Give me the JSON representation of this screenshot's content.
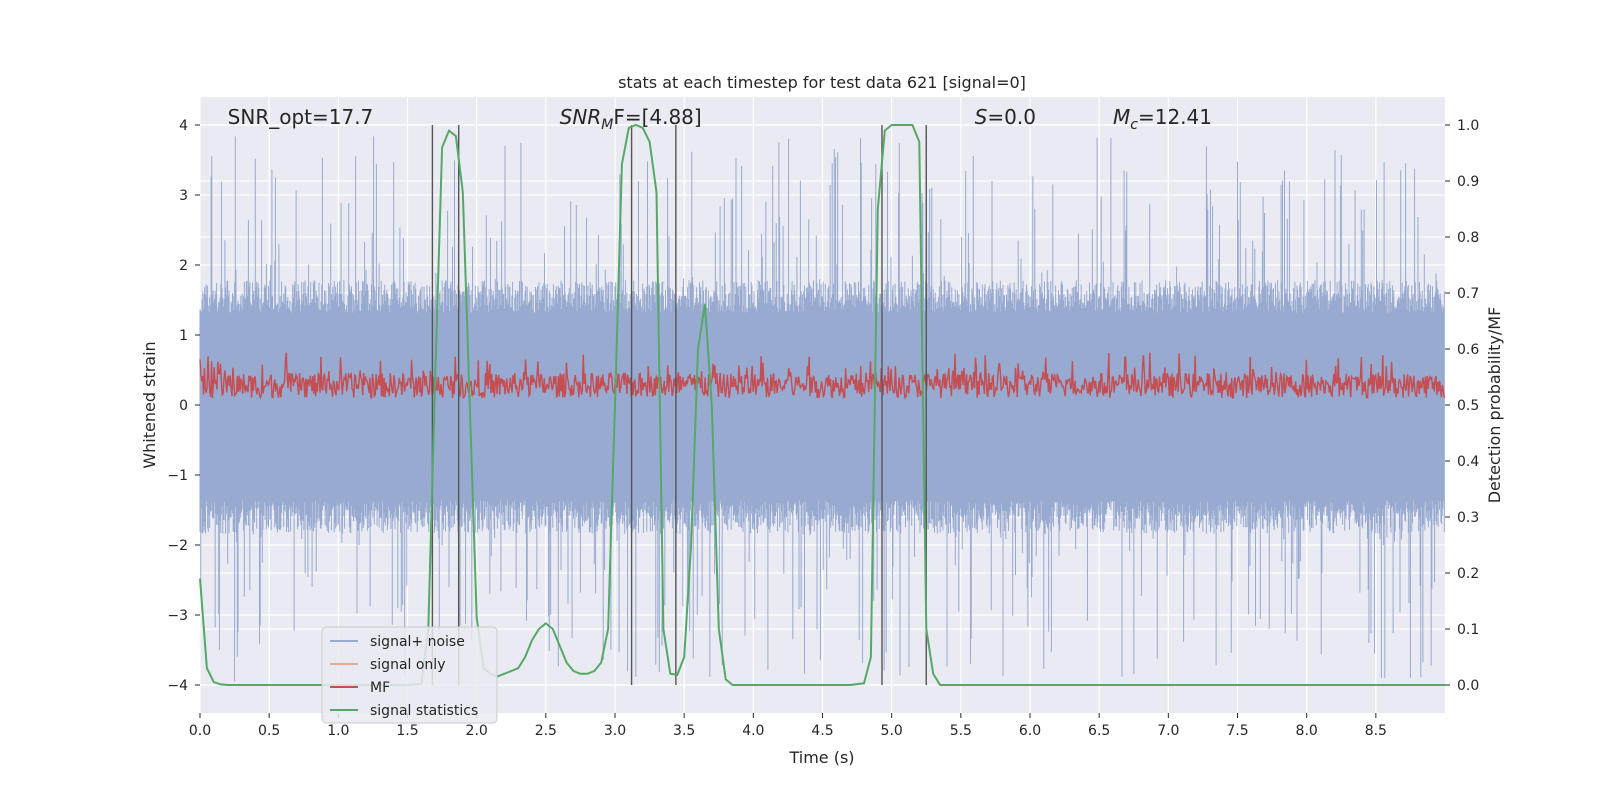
{
  "chart_data": {
    "type": "line",
    "title": "stats at each timestep for test data 621 [signal=0]",
    "xlabel": "Time (s)",
    "ylabel": "Whitened strain",
    "y2label": "Detection probability/MF",
    "xlim": [
      0.0,
      9.0
    ],
    "ylim": [
      -4.4,
      4.4
    ],
    "y2lim": [
      -0.05,
      1.05
    ],
    "xticks": [
      0.0,
      0.5,
      1.0,
      1.5,
      2.0,
      2.5,
      3.0,
      3.5,
      4.0,
      4.5,
      5.0,
      5.5,
      6.0,
      6.5,
      7.0,
      7.5,
      8.0,
      8.5
    ],
    "xtick_labels": [
      "0.0",
      "0.5",
      "1.0",
      "1.5",
      "2.0",
      "2.5",
      "3.0",
      "3.5",
      "4.0",
      "4.5",
      "5.0",
      "5.5",
      "6.0",
      "6.5",
      "7.0",
      "7.5",
      "8.0",
      "8.5"
    ],
    "yticks": [
      -4,
      -3,
      -2,
      -1,
      0,
      1,
      2,
      3,
      4
    ],
    "ytick_labels": [
      "−4",
      "−3",
      "−2",
      "−1",
      "0",
      "1",
      "2",
      "3",
      "4"
    ],
    "y2ticks": [
      0.0,
      0.1,
      0.2,
      0.3,
      0.4,
      0.5,
      0.6,
      0.7,
      0.8,
      0.9,
      1.0
    ],
    "y2tick_labels": [
      "0.0",
      "0.1",
      "0.2",
      "0.3",
      "0.4",
      "0.5",
      "0.6",
      "0.7",
      "0.8",
      "0.9",
      "1.0"
    ],
    "grid": true,
    "annotations": [
      {
        "text": "SNR_opt=17.7",
        "x": 0.2
      },
      {
        "text": "SNR",
        "sub": "M",
        "tail": "F=[4.88]",
        "x": 2.6
      },
      {
        "text": "S",
        "tail": "=0.0",
        "x": 5.6
      },
      {
        "text": "M",
        "sub": "c",
        "tail": "=12.41",
        "x": 6.6
      }
    ],
    "vlines": [
      1.68,
      1.87,
      3.12,
      3.44,
      4.93,
      5.25
    ],
    "series": [
      {
        "name": "signal+ noise",
        "color": "#98aad0",
        "envelope": {
          "mean": 0.0,
          "pos_amp": 1.55,
          "neg_amp": 1.6,
          "max": 3.85,
          "min": -3.95
        }
      },
      {
        "name": "signal only",
        "color": "#e8a98f",
        "values": []
      },
      {
        "name": "MF",
        "color": "#c44e52",
        "envelope": {
          "mean": 0.28,
          "low": 0.02,
          "high": 0.75
        }
      },
      {
        "name": "signal statistics",
        "color": "#55a868",
        "axis": "right",
        "x": [
          0.0,
          0.05,
          0.1,
          0.15,
          0.2,
          0.3,
          0.5,
          0.75,
          1.0,
          1.25,
          1.5,
          1.6,
          1.65,
          1.7,
          1.75,
          1.8,
          1.85,
          1.9,
          1.95,
          2.0,
          2.05,
          2.1,
          2.15,
          2.2,
          2.3,
          2.35,
          2.4,
          2.45,
          2.5,
          2.55,
          2.6,
          2.65,
          2.7,
          2.75,
          2.8,
          2.85,
          2.9,
          2.95,
          3.0,
          3.05,
          3.1,
          3.15,
          3.2,
          3.25,
          3.3,
          3.35,
          3.4,
          3.45,
          3.5,
          3.55,
          3.6,
          3.65,
          3.7,
          3.75,
          3.8,
          3.85,
          3.9,
          3.95,
          4.0,
          4.05,
          4.1,
          4.15,
          4.2,
          4.3,
          4.5,
          4.7,
          4.8,
          4.85,
          4.9,
          4.95,
          5.0,
          5.05,
          5.1,
          5.15,
          5.2,
          5.25,
          5.3,
          5.35,
          5.4,
          5.45,
          5.5,
          6.0,
          7.0,
          8.0,
          9.0
        ],
        "values": [
          0.19,
          0.03,
          0.005,
          0.001,
          0.0,
          0.0,
          0.0,
          0.0,
          0.0,
          0.0,
          0.0,
          0.002,
          0.1,
          0.55,
          0.96,
          0.99,
          0.98,
          0.88,
          0.5,
          0.12,
          0.03,
          0.02,
          0.015,
          0.02,
          0.03,
          0.05,
          0.08,
          0.1,
          0.11,
          0.1,
          0.07,
          0.04,
          0.025,
          0.02,
          0.02,
          0.025,
          0.04,
          0.1,
          0.5,
          0.93,
          0.995,
          1.0,
          0.995,
          0.97,
          0.88,
          0.1,
          0.02,
          0.018,
          0.05,
          0.25,
          0.6,
          0.68,
          0.5,
          0.1,
          0.01,
          0.0,
          0.0,
          0.0,
          0.0,
          0.0,
          0.0,
          0.0,
          0.0,
          0.0,
          0.0,
          0.0,
          0.003,
          0.05,
          0.85,
          0.99,
          1.0,
          1.0,
          1.0,
          1.0,
          0.97,
          0.1,
          0.02,
          0.0,
          0.0,
          0.0,
          0.0,
          0.0,
          0.0,
          0.0,
          0.0
        ]
      }
    ],
    "legend": {
      "placement": "lower-left",
      "entries": [
        "signal+ noise",
        "signal only",
        "MF",
        "signal statistics"
      ]
    }
  }
}
